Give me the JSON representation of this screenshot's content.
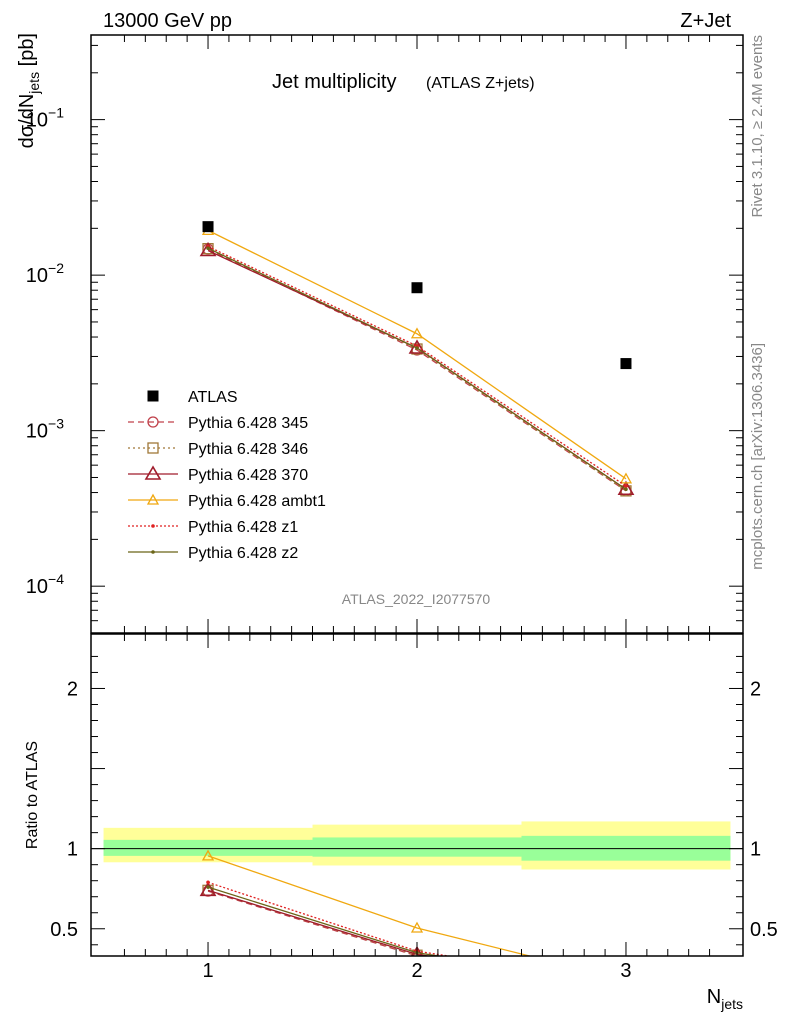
{
  "header": {
    "left": "13000 GeV pp",
    "right": "Z+Jet"
  },
  "side_labels": {
    "rivet": "Rivet 3.1.10, ≥ 2.4M events",
    "mcplots": "mcplots.cern.ch [arXiv:1306.3436]"
  },
  "chart_data": {
    "type": "line",
    "title": "Jet multiplicity",
    "subtitle": "(ATLAS Z+jets)",
    "watermark": "ATLAS_2022_I2077570",
    "xlabel": "N",
    "xlabel_sub": "jets",
    "ylabel": "dσ/dN",
    "ylabel_sub": "jets",
    "ylabel_unit": " [pb]",
    "ratio_ylabel": "Ratio to ATLAS",
    "log_y": true,
    "xlim": [
      0.44,
      3.56
    ],
    "ylim": [
      5e-05,
      0.35
    ],
    "ratio_ylim": [
      0.33,
      2.34
    ],
    "x_ticks": [
      "1",
      "2",
      "3"
    ],
    "y_tick_labels": [
      {
        "base": "10",
        "exp": "−1",
        "value": 0.1
      },
      {
        "base": "10",
        "exp": "−2",
        "value": 0.01
      },
      {
        "base": "10",
        "exp": "−3",
        "value": 0.001
      },
      {
        "base": "10",
        "exp": "−4",
        "value": 0.0001
      }
    ],
    "ratio_y_ticks": [
      "0.5",
      "1",
      "2"
    ],
    "x": [
      1,
      2,
      3
    ],
    "data": {
      "name": "ATLAS",
      "values": [
        0.0205,
        0.0083,
        0.0027
      ],
      "bins": [
        [
          0.5,
          1.5
        ],
        [
          1.5,
          2.5
        ],
        [
          2.5,
          3.5
        ]
      ],
      "ratio_band_inner": [
        [
          0.955,
          1.055
        ],
        [
          0.95,
          1.07
        ],
        [
          0.925,
          1.08
        ]
      ],
      "ratio_band_outer": [
        [
          0.915,
          1.13
        ],
        [
          0.895,
          1.15
        ],
        [
          0.87,
          1.17
        ]
      ]
    },
    "series": [
      {
        "name": "Pythia 6.428 345",
        "values": [
          0.0147,
          0.0033,
          0.00041
        ],
        "ratio": [
          0.735,
          0.33,
          0.15
        ],
        "color": "#c0404a",
        "dash": "6,4",
        "marker": "circle"
      },
      {
        "name": "Pythia 6.428 346",
        "values": [
          0.0148,
          0.00335,
          0.00041
        ],
        "ratio": [
          0.74,
          0.335,
          0.15
        ],
        "color": "#a07838",
        "dash": "2,3",
        "marker": "square"
      },
      {
        "name": "Pythia 6.428 370",
        "values": [
          0.0144,
          0.0034,
          0.00042
        ],
        "ratio": [
          0.74,
          0.34,
          0.155
        ],
        "color": "#a01c2c",
        "dash": "",
        "marker": "triangle-large"
      },
      {
        "name": "Pythia 6.428 ambt1",
        "values": [
          0.0194,
          0.0042,
          0.00049
        ],
        "ratio": [
          0.955,
          0.505,
          0.18
        ],
        "color": "#f0a810",
        "dash": "",
        "marker": "triangle"
      },
      {
        "name": "Pythia 6.428 z1",
        "values": [
          0.0153,
          0.0035,
          0.00044
        ],
        "ratio": [
          0.79,
          0.36,
          0.16
        ],
        "color": "#e02020",
        "dash": "2,2",
        "marker": "dot"
      },
      {
        "name": "Pythia 6.428 z2",
        "values": [
          0.0149,
          0.0034,
          0.00042
        ],
        "ratio": [
          0.76,
          0.35,
          0.155
        ],
        "color": "#6b6518",
        "dash": "",
        "marker": "dot"
      }
    ],
    "colors": {
      "band_inner": "#99ff99",
      "band_outer": "#ffff99",
      "data_marker": "#000000"
    }
  }
}
